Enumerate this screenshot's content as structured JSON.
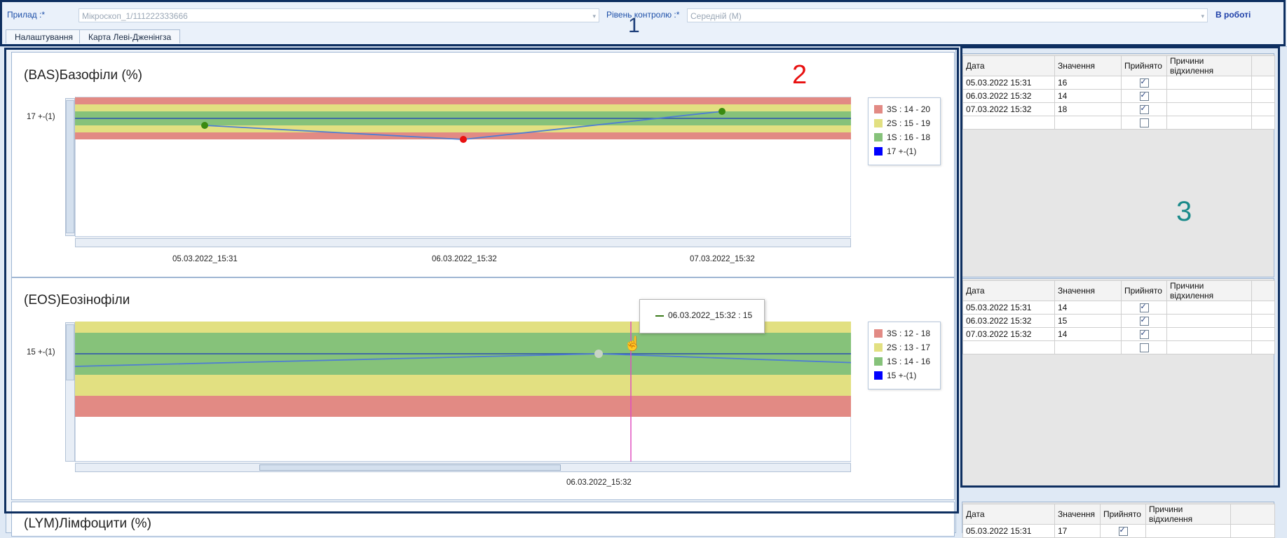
{
  "header": {
    "device_label": "Прилад :*",
    "device_value": "Мікроскоп_1/111222333666",
    "level_label": "Рівень контролю :*",
    "level_value": "Середній (М)",
    "status": "В роботі",
    "tabs": [
      {
        "label": "Налаштування"
      },
      {
        "label": "Карта Леві-Дженінгза"
      }
    ]
  },
  "annotations": {
    "one": "1",
    "two": "2",
    "three": "3"
  },
  "colors": {
    "red": "#e28a84",
    "yellow": "#e2e081",
    "green": "#86c27a",
    "mean": "#0000ff",
    "line": "#4f7ed2",
    "cursor": "#e050c0"
  },
  "charts": [
    {
      "title": "(BAS)Базофіли (%)",
      "y_tick_label": "17 +-(1)",
      "legend": [
        {
          "label": "3S : 14 - 20",
          "color": "#e28a84"
        },
        {
          "label": "2S : 15 - 19",
          "color": "#e2e081"
        },
        {
          "label": "1S : 16 - 18",
          "color": "#86c27a"
        },
        {
          "label": "17 +-(1)",
          "color": "#0000ff"
        }
      ],
      "x_labels": [
        "05.03.2022_15:31",
        "06.03.2022_15:32",
        "07.03.2022_15:32"
      ]
    },
    {
      "title": "(EOS)Еозінофіли",
      "y_tick_label": "15 +-(1)",
      "legend": [
        {
          "label": "3S : 12 - 18",
          "color": "#e28a84"
        },
        {
          "label": "2S : 13 - 17",
          "color": "#e2e081"
        },
        {
          "label": "1S : 14 - 16",
          "color": "#86c27a"
        },
        {
          "label": "15 +-(1)",
          "color": "#0000ff"
        }
      ],
      "x_labels": [
        "06.03.2022_15:32"
      ],
      "tooltip": "06.03.2022_15:32 : 15"
    },
    {
      "title": "(LYM)Лімфоцити (%)"
    }
  ],
  "chart_data": [
    {
      "type": "line",
      "title": "(BAS)Базофіли (%)",
      "x": [
        "05.03.2022_15:31",
        "06.03.2022_15:32",
        "07.03.2022_15:32"
      ],
      "values": [
        16,
        14,
        18
      ],
      "mean": 17,
      "sd": 1
    },
    {
      "type": "line",
      "title": "(EOS)Еозінофіли",
      "x": [
        "05.03.2022_15:31",
        "06.03.2022_15:32",
        "07.03.2022_15:32"
      ],
      "values": [
        14,
        15,
        14
      ],
      "mean": 15,
      "sd": 1
    }
  ],
  "grid": {
    "headers": [
      "Дата",
      "Значення",
      "Прийнято",
      "Причини відхилення"
    ],
    "tables": [
      {
        "rows": [
          {
            "date": "05.03.2022 15:31",
            "value": "16",
            "accepted": true
          },
          {
            "date": "06.03.2022 15:32",
            "value": "14",
            "accepted": true
          },
          {
            "date": "07.03.2022 15:32",
            "value": "18",
            "accepted": true
          }
        ]
      },
      {
        "rows": [
          {
            "date": "05.03.2022 15:31",
            "value": "14",
            "accepted": true
          },
          {
            "date": "06.03.2022 15:32",
            "value": "15",
            "accepted": true
          },
          {
            "date": "07.03.2022 15:32",
            "value": "14",
            "accepted": true
          }
        ]
      },
      {
        "rows": [
          {
            "date": "05.03.2022 15:31",
            "value": "17",
            "accepted": true
          }
        ]
      }
    ]
  }
}
